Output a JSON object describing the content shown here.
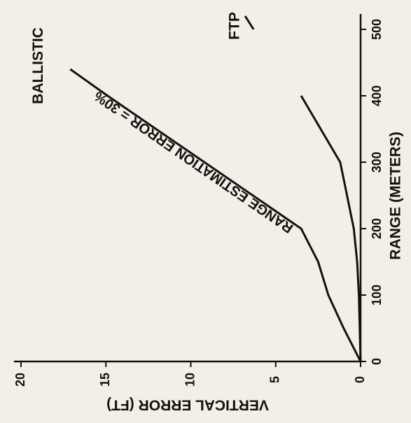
{
  "chart_data": {
    "type": "line",
    "x_label": "RANGE (METERS)",
    "y_label": "VERTICAL ERROR (FT)",
    "x": [
      0,
      50,
      100,
      150,
      200,
      300,
      400,
      440,
      500,
      520
    ],
    "series": [
      {
        "name": "BALLISTIC",
        "color": "#111111",
        "values": [
          0,
          1.0,
          1.9,
          2.5,
          3.5,
          9.2,
          14.9,
          17.1,
          null,
          null
        ]
      },
      {
        "name": "FTP",
        "color": "#111111",
        "values": [
          0,
          0.05,
          0.1,
          0.2,
          0.4,
          1.2,
          3.5,
          null,
          6.3,
          6.8
        ]
      }
    ],
    "annotation": "RANGE ESTIMATION ERROR = 30%",
    "xlim": [
      0,
      500
    ],
    "xticks": [
      0,
      100,
      200,
      300,
      400,
      500
    ],
    "ylim": [
      0,
      20
    ],
    "yticks": [
      0,
      5,
      10,
      15,
      20
    ],
    "grid": false
  }
}
